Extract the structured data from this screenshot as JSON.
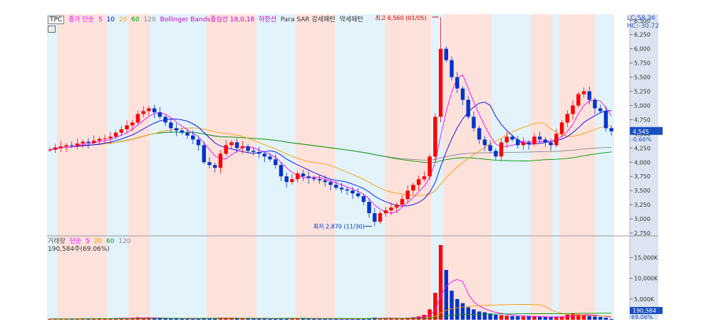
{
  "legend_top": {
    "ticker": "TPC",
    "ma_title": "종가 단순",
    "ma_periods": [
      {
        "label": "5",
        "color": "#ff00ff"
      },
      {
        "label": "10",
        "color": "#0000ff"
      },
      {
        "label": "20",
        "color": "#ff9900"
      },
      {
        "label": "60",
        "color": "#009900"
      },
      {
        "label": "120",
        "color": "#888888"
      }
    ],
    "bollinger": "Bollinger Bands중심선 18,0,18",
    "bollinger_lower": "하한선",
    "sar": "Para SAR 강세패턴",
    "sar_weak": "약세패턴",
    "lc_label": "LC:58.36",
    "hc_label": "HC:-30.72"
  },
  "legend_vol": {
    "title": "거래량",
    "ma_title": "단순",
    "ma_periods": [
      {
        "label": "5",
        "color": "#ff00ff"
      },
      {
        "label": "20",
        "color": "#ff9900"
      },
      {
        "label": "60",
        "color": "#009900"
      },
      {
        "label": "120",
        "color": "#888888"
      }
    ],
    "value_line": "190,584주(69.06%)"
  },
  "price_axis": {
    "ticks": [
      "6,500",
      "6,250",
      "6,000",
      "5,750",
      "5,500",
      "5,250",
      "5,000",
      "4,750",
      "4,500",
      "4,250",
      "4,000",
      "3,750",
      "3,500",
      "3,250",
      "3,000",
      "2,750"
    ],
    "current_price": "4,545",
    "current_change": "-0.66%"
  },
  "volume_axis": {
    "ticks": [
      "15,000K",
      "10,000K",
      "5,000K"
    ],
    "current_volume": "190,584",
    "current_change": "69.06%"
  },
  "annotations": {
    "high": "최고 6,560 (01/05)",
    "low": "최저 2,870 (11/30)"
  },
  "colors": {
    "up": "#ff0000",
    "down": "#0033cc",
    "band_pink": "#fde2dc",
    "band_blue": "#e2f3fb",
    "axis_bg": "#dbe4f0"
  },
  "chart_data": {
    "type": "candlestick",
    "price_ylim": [
      2750,
      6560
    ],
    "volume_ylim": [
      0,
      19000
    ],
    "annotations": [
      {
        "text": "최고 6,560 (01/05)",
        "value": 6560
      },
      {
        "text": "최저 2,870 (11/30)",
        "value": 2870
      }
    ],
    "close": [
      4220,
      4260,
      4280,
      4300,
      4290,
      4330,
      4360,
      4340,
      4380,
      4410,
      4420,
      4450,
      4520,
      4580,
      4650,
      4700,
      4850,
      4900,
      4950,
      4880,
      4800,
      4700,
      4600,
      4560,
      4520,
      4470,
      4400,
      4300,
      4000,
      3950,
      3900,
      4150,
      4300,
      4350,
      4250,
      4280,
      4200,
      4180,
      4150,
      4100,
      4050,
      3950,
      3750,
      3650,
      3700,
      3800,
      3750,
      3720,
      3700,
      3680,
      3650,
      3600,
      3550,
      3520,
      3500,
      3450,
      3400,
      3300,
      3100,
      2950,
      3100,
      3150,
      3200,
      3250,
      3350,
      3500,
      3600,
      3700,
      3750,
      4100,
      4800,
      6000,
      5800,
      5500,
      5300,
      5100,
      4800,
      4600,
      4400,
      4300,
      4200,
      4100,
      4350,
      4450,
      4400,
      4300,
      4350,
      4320,
      4450,
      4400,
      4350,
      4300,
      4500,
      4700,
      4850,
      5000,
      5200,
      5250,
      5100,
      4950,
      4900,
      4600,
      4545
    ],
    "volume": [
      200,
      220,
      180,
      250,
      200,
      230,
      260,
      240,
      280,
      300,
      310,
      280,
      350,
      380,
      420,
      450,
      600,
      500,
      400,
      380,
      350,
      300,
      280,
      260,
      250,
      240,
      260,
      300,
      450,
      400,
      350,
      500,
      400,
      350,
      300,
      280,
      260,
      250,
      240,
      230,
      220,
      300,
      400,
      350,
      300,
      280,
      260,
      250,
      240,
      230,
      220,
      210,
      200,
      200,
      210,
      220,
      260,
      300,
      400,
      500,
      400,
      350,
      320,
      300,
      350,
      500,
      600,
      800,
      1200,
      2500,
      6500,
      18000,
      12000,
      7000,
      5000,
      4000,
      3000,
      2500,
      2000,
      1800,
      1500,
      1200,
      1100,
      1000,
      900,
      850,
      800,
      780,
      750,
      700,
      650,
      600,
      700,
      800,
      1200,
      1500,
      1300,
      1100,
      900,
      800,
      700,
      500,
      190
    ]
  }
}
